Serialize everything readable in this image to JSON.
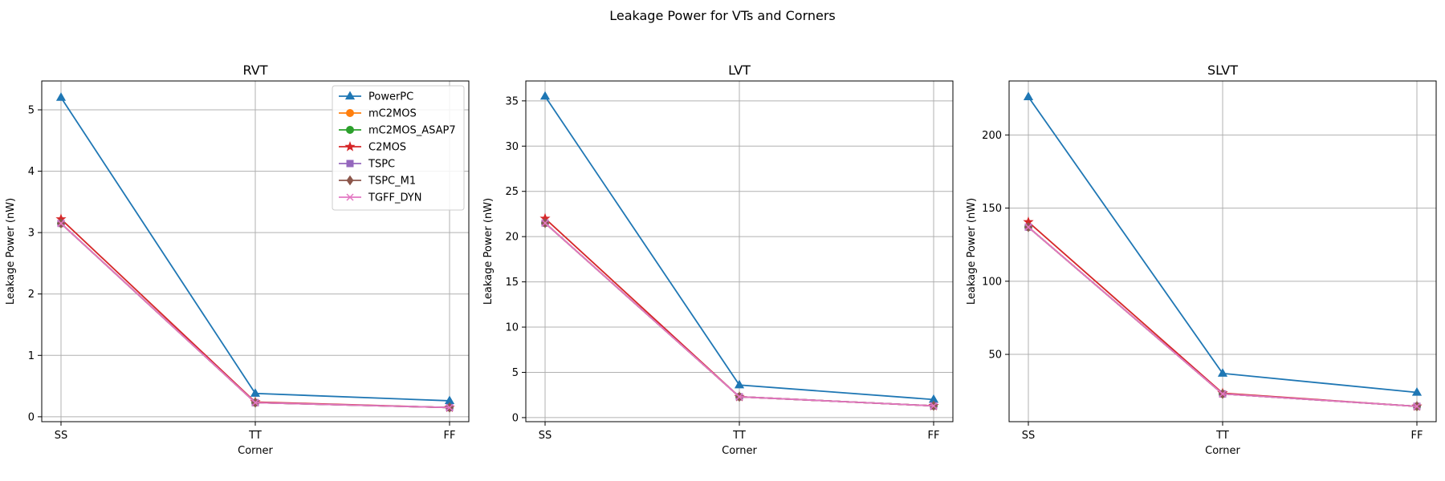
{
  "figure": {
    "suptitle": "Leakage Power for VTs and Corners"
  },
  "series_styles": [
    {
      "name": "PowerPC",
      "color": "#1f77b4",
      "marker": "triangle"
    },
    {
      "name": "mC2MOS",
      "color": "#ff7f0e",
      "marker": "circle"
    },
    {
      "name": "mC2MOS_ASAP7",
      "color": "#2ca02c",
      "marker": "circle"
    },
    {
      "name": "C2MOS",
      "color": "#d62728",
      "marker": "star"
    },
    {
      "name": "TSPC",
      "color": "#9467bd",
      "marker": "square"
    },
    {
      "name": "TSPC_M1",
      "color": "#8c564b",
      "marker": "diamond"
    },
    {
      "name": "TGFF_DYN",
      "color": "#e377c2",
      "marker": "x"
    }
  ],
  "chart_data": [
    {
      "type": "line",
      "title": "RVT",
      "xlabel": "Corner",
      "ylabel": "Leakage Power (nW)",
      "categories": [
        "SS",
        "TT",
        "FF"
      ],
      "ylim": [
        -0.08,
        5.47
      ],
      "yticks": [
        0,
        1,
        2,
        3,
        4,
        5
      ],
      "grid": true,
      "legend": "upper right",
      "series": [
        {
          "name": "PowerPC",
          "values": [
            5.2,
            0.38,
            0.26
          ]
        },
        {
          "name": "mC2MOS",
          "values": [
            3.15,
            0.23,
            0.15
          ]
        },
        {
          "name": "mC2MOS_ASAP7",
          "values": [
            3.15,
            0.23,
            0.15
          ]
        },
        {
          "name": "C2MOS",
          "values": [
            3.22,
            0.24,
            0.15
          ]
        },
        {
          "name": "TSPC",
          "values": [
            3.15,
            0.23,
            0.15
          ]
        },
        {
          "name": "TSPC_M1",
          "values": [
            3.15,
            0.23,
            0.15
          ]
        },
        {
          "name": "TGFF_DYN",
          "values": [
            3.15,
            0.23,
            0.15
          ]
        }
      ]
    },
    {
      "type": "line",
      "title": "LVT",
      "xlabel": "Corner",
      "ylabel": "Leakage Power (nW)",
      "categories": [
        "SS",
        "TT",
        "FF"
      ],
      "ylim": [
        -0.45,
        37.2
      ],
      "yticks": [
        0,
        5,
        10,
        15,
        20,
        25,
        30,
        35
      ],
      "grid": true,
      "series": [
        {
          "name": "PowerPC",
          "values": [
            35.5,
            3.6,
            2.0
          ]
        },
        {
          "name": "mC2MOS",
          "values": [
            21.5,
            2.3,
            1.3
          ]
        },
        {
          "name": "mC2MOS_ASAP7",
          "values": [
            21.5,
            2.3,
            1.3
          ]
        },
        {
          "name": "C2MOS",
          "values": [
            22.0,
            2.3,
            1.3
          ]
        },
        {
          "name": "TSPC",
          "values": [
            21.5,
            2.3,
            1.3
          ]
        },
        {
          "name": "TSPC_M1",
          "values": [
            21.5,
            2.3,
            1.3
          ]
        },
        {
          "name": "TGFF_DYN",
          "values": [
            21.5,
            2.3,
            1.3
          ]
        }
      ]
    },
    {
      "type": "line",
      "title": "SLVT",
      "xlabel": "Corner",
      "ylabel": "Leakage Power (nW)",
      "categories": [
        "SS",
        "TT",
        "FF"
      ],
      "ylim": [
        4.0,
        236.9
      ],
      "yticks": [
        50,
        100,
        150,
        200
      ],
      "grid": true,
      "series": [
        {
          "name": "PowerPC",
          "values": [
            226,
            37,
            24
          ]
        },
        {
          "name": "mC2MOS",
          "values": [
            137,
            23,
            14.5
          ]
        },
        {
          "name": "mC2MOS_ASAP7",
          "values": [
            137,
            23,
            14.5
          ]
        },
        {
          "name": "C2MOS",
          "values": [
            140.5,
            23.5,
            14.5
          ]
        },
        {
          "name": "TSPC",
          "values": [
            137,
            23,
            14.5
          ]
        },
        {
          "name": "TSPC_M1",
          "values": [
            137,
            23,
            14.5
          ]
        },
        {
          "name": "TGFF_DYN",
          "values": [
            137,
            23,
            14.5
          ]
        }
      ]
    }
  ]
}
